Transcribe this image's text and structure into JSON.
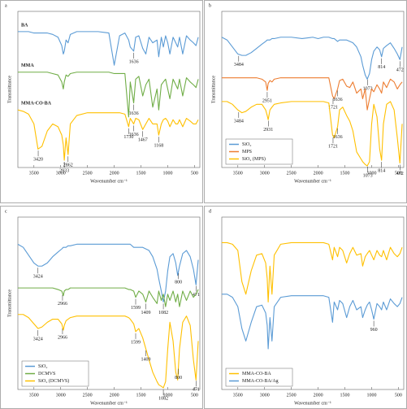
{
  "chart_data": [
    {
      "type": "line",
      "panel_label": "a",
      "xlabel": "Wavenumber cm⁻¹",
      "ylabel": "Transmittance",
      "xlim": [
        3800,
        400
      ],
      "ylim": [
        0,
        100
      ],
      "xticks": [
        3500,
        3000,
        2500,
        2000,
        1500,
        1000,
        500
      ],
      "legend": "inline",
      "x": [
        3800,
        3700,
        3600,
        3500,
        3424,
        3350,
        3250,
        3150,
        3050,
        2980,
        2951,
        2933,
        2900,
        2862,
        2820,
        2700,
        2500,
        2300,
        2100,
        2000,
        1900,
        1800,
        1730,
        1700,
        1636,
        1599,
        1540,
        1467,
        1409,
        1350,
        1280,
        1200,
        1168,
        1120,
        1082,
        1040,
        1000,
        960,
        900,
        850,
        814,
        780,
        720,
        650,
        580,
        520,
        472,
        430
      ],
      "series": [
        {
          "name": "BA",
          "color": "#5b9bd5",
          "peaks": [
            1636
          ],
          "values": [
            96,
            96,
            96,
            95,
            95,
            95,
            95,
            94,
            92,
            86,
            80,
            82,
            90,
            88,
            94,
            96,
            96,
            96,
            95,
            72,
            93,
            95,
            90,
            85,
            82,
            92,
            93,
            84,
            80,
            92,
            88,
            90,
            78,
            92,
            85,
            93,
            88,
            80,
            92,
            88,
            85,
            92,
            80,
            93,
            90,
            88,
            86,
            92
          ]
        },
        {
          "name": "MMA",
          "color": "#70ad47",
          "peaks": [
            1636
          ],
          "values": [
            67,
            67,
            67,
            67,
            67,
            67,
            67,
            66,
            65,
            60,
            55,
            60,
            65,
            64,
            66,
            67,
            67,
            67,
            67,
            66,
            66,
            66,
            35,
            60,
            45,
            62,
            64,
            50,
            58,
            62,
            42,
            55,
            40,
            58,
            60,
            62,
            55,
            48,
            62,
            58,
            55,
            62,
            50,
            63,
            60,
            58,
            56,
            62
          ]
        },
        {
          "name": "MMA-CO-BA",
          "color": "#ffc000",
          "peaks": [
            3420,
            2933,
            2862,
            1730,
            1636,
            1467,
            1168
          ],
          "values": [
            40,
            39,
            37,
            30,
            12,
            14,
            25,
            30,
            28,
            22,
            15,
            4,
            20,
            8,
            30,
            36,
            38,
            38,
            38,
            38,
            38,
            37,
            28,
            34,
            30,
            34,
            33,
            26,
            30,
            34,
            30,
            30,
            22,
            30,
            33,
            34,
            32,
            28,
            33,
            30,
            30,
            33,
            28,
            34,
            32,
            30,
            30,
            33
          ]
        }
      ]
    },
    {
      "type": "line",
      "panel_label": "b",
      "xlabel": "Wavenumber cm⁻¹",
      "ylabel": "Transmittance",
      "xlim": [
        3800,
        400
      ],
      "ylim": [
        0,
        100
      ],
      "xticks": [
        3500,
        3000,
        2500,
        2000,
        1500,
        1000,
        500
      ],
      "legend": "lower left",
      "x": [
        3800,
        3700,
        3600,
        3500,
        3424,
        3350,
        3250,
        3150,
        3050,
        2980,
        2951,
        2933,
        2900,
        2862,
        2820,
        2700,
        2500,
        2300,
        2100,
        2000,
        1900,
        1800,
        1730,
        1700,
        1636,
        1599,
        1540,
        1467,
        1409,
        1350,
        1280,
        1200,
        1168,
        1120,
        1082,
        1040,
        1000,
        960,
        900,
        850,
        814,
        780,
        720,
        650,
        580,
        520,
        472,
        430
      ],
      "series": [
        {
          "name": "SiO₂",
          "color": "#5b9bd5",
          "peaks": [
            3484,
            1073,
            814,
            472
          ],
          "values": [
            92,
            90,
            85,
            80,
            79,
            79,
            81,
            84,
            87,
            89,
            90,
            90,
            90,
            91,
            91,
            92,
            92,
            91,
            92,
            91,
            92,
            92,
            91,
            91,
            89,
            90,
            90,
            90,
            89,
            88,
            85,
            78,
            72,
            65,
            62,
            66,
            76,
            82,
            85,
            83,
            78,
            84,
            86,
            88,
            84,
            80,
            76,
            85
          ]
        },
        {
          "name": "MPS",
          "color": "#ed7d31",
          "peaks": [
            2951,
            1721,
            1636
          ],
          "values": [
            63,
            63,
            63,
            63,
            63,
            63,
            63,
            63,
            62,
            60,
            54,
            59,
            61,
            60,
            62,
            63,
            63,
            63,
            63,
            63,
            63,
            63,
            50,
            48,
            55,
            61,
            62,
            57,
            56,
            60,
            52,
            55,
            48,
            55,
            40,
            48,
            55,
            53,
            58,
            55,
            52,
            60,
            56,
            62,
            60,
            55,
            58,
            60
          ]
        },
        {
          "name": "SiO₂ (MPS)",
          "color": "#ffc000",
          "peaks": [
            3484,
            2931,
            1721,
            1636,
            1073,
            814,
            472
          ],
          "values": [
            46,
            46,
            44,
            40,
            38,
            39,
            42,
            44,
            44,
            40,
            36,
            33,
            40,
            42,
            44,
            45,
            46,
            46,
            46,
            46,
            46,
            45,
            22,
            20,
            28,
            40,
            42,
            36,
            32,
            25,
            10,
            5,
            3,
            1,
            0,
            3,
            30,
            44,
            35,
            12,
            4,
            30,
            44,
            46,
            40,
            20,
            2,
            30
          ]
        }
      ]
    },
    {
      "type": "line",
      "panel_label": "c",
      "xlabel": "Wavenumber cm⁻¹",
      "ylabel": "Transmittance",
      "xlim": [
        3800,
        400
      ],
      "ylim": [
        0,
        100
      ],
      "xticks": [
        3500,
        3000,
        2500,
        2000,
        1500,
        1000,
        500
      ],
      "legend": "lower left",
      "x": [
        3800,
        3700,
        3600,
        3500,
        3424,
        3350,
        3250,
        3150,
        3050,
        2980,
        2951,
        2933,
        2900,
        2862,
        2820,
        2700,
        2500,
        2300,
        2100,
        2000,
        1900,
        1800,
        1730,
        1700,
        1636,
        1599,
        1540,
        1467,
        1409,
        1350,
        1280,
        1200,
        1168,
        1120,
        1082,
        1040,
        1000,
        960,
        900,
        850,
        814,
        780,
        720,
        650,
        580,
        520,
        472,
        430
      ],
      "series": [
        {
          "name": "SiO₂",
          "color": "#5b9bd5",
          "peaks": [
            3424,
            1082,
            800,
            471
          ],
          "values": [
            92,
            90,
            85,
            80,
            78,
            78,
            80,
            84,
            87,
            89,
            90,
            90,
            90,
            91,
            91,
            92,
            92,
            92,
            92,
            92,
            92,
            92,
            92,
            92,
            90,
            90,
            90,
            90,
            89,
            88,
            84,
            76,
            70,
            62,
            55,
            62,
            75,
            84,
            86,
            80,
            72,
            78,
            86,
            88,
            84,
            76,
            66,
            82
          ]
        },
        {
          "name": "DCMVS",
          "color": "#70ad47",
          "peaks": [
            2966,
            1599,
            1409
          ],
          "values": [
            64,
            64,
            64,
            64,
            64,
            64,
            64,
            64,
            63,
            62,
            59,
            62,
            63,
            63,
            64,
            64,
            64,
            64,
            64,
            64,
            64,
            64,
            63,
            63,
            62,
            58,
            62,
            60,
            55,
            62,
            58,
            54,
            62,
            56,
            60,
            52,
            60,
            56,
            62,
            55,
            60,
            52,
            62,
            56,
            62,
            58,
            60,
            63
          ]
        },
        {
          "name": "SiO₂ (DCMVS)",
          "color": "#ffc000",
          "peaks": [
            3424,
            2966,
            1599,
            1409,
            1082,
            800,
            471
          ],
          "values": [
            47,
            47,
            45,
            41,
            38,
            39,
            42,
            44,
            44,
            41,
            37,
            40,
            43,
            44,
            45,
            46,
            46,
            46,
            46,
            46,
            46,
            46,
            45,
            44,
            41,
            36,
            38,
            32,
            25,
            18,
            10,
            4,
            2,
            1,
            0,
            4,
            25,
            42,
            30,
            10,
            5,
            25,
            42,
            46,
            40,
            18,
            5,
            30
          ]
        }
      ]
    },
    {
      "type": "line",
      "panel_label": "d",
      "xlabel": "Wavenumber cm⁻¹",
      "xlim": [
        3800,
        400
      ],
      "ylim": [
        0,
        100
      ],
      "xticks": [
        3500,
        3000,
        2500,
        2000,
        1500,
        1000,
        500
      ],
      "legend": "lower left",
      "x": [
        3800,
        3700,
        3600,
        3500,
        3424,
        3350,
        3250,
        3150,
        3050,
        2980,
        2951,
        2933,
        2900,
        2862,
        2820,
        2700,
        2500,
        2300,
        2100,
        2000,
        1900,
        1800,
        1730,
        1700,
        1636,
        1599,
        1540,
        1467,
        1409,
        1350,
        1280,
        1200,
        1168,
        1120,
        1082,
        1040,
        1000,
        960,
        900,
        850,
        814,
        780,
        720,
        650,
        580,
        520,
        472,
        430
      ],
      "series": [
        {
          "name": "MMA-CO-BA",
          "color": "#ffc000",
          "values": [
            93,
            93,
            92,
            88,
            68,
            60,
            75,
            85,
            86,
            80,
            70,
            55,
            78,
            60,
            85,
            92,
            93,
            93,
            93,
            93,
            93,
            92,
            82,
            90,
            84,
            90,
            88,
            80,
            86,
            90,
            85,
            86,
            78,
            84,
            86,
            88,
            85,
            82,
            88,
            85,
            84,
            88,
            82,
            90,
            86,
            84,
            86,
            90
          ]
        },
        {
          "name": "MMA-CO-BA/Ag",
          "color": "#5b9bd5",
          "peaks": [
            960
          ],
          "values": [
            60,
            60,
            58,
            52,
            38,
            30,
            42,
            52,
            53,
            48,
            40,
            25,
            45,
            30,
            52,
            58,
            59,
            59,
            59,
            59,
            59,
            58,
            42,
            55,
            50,
            56,
            54,
            45,
            52,
            56,
            50,
            52,
            45,
            50,
            53,
            55,
            50,
            44,
            54,
            52,
            50,
            55,
            50,
            57,
            54,
            52,
            54,
            58
          ]
        }
      ]
    }
  ]
}
